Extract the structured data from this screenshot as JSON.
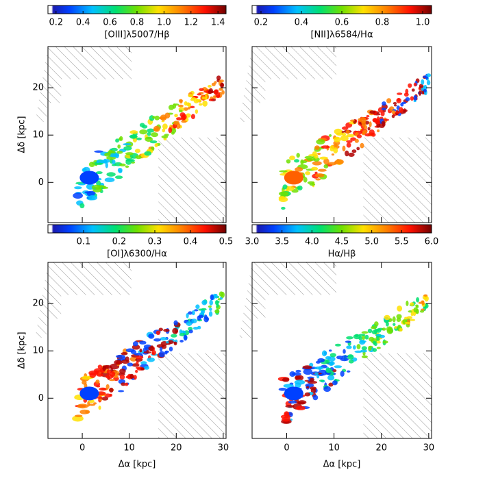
{
  "chart_data": [
    {
      "type": "map",
      "colorbar_label": "[OIII]λ5007/Hβ",
      "clim": [
        0.14,
        1.46
      ],
      "cticks": [
        0.2,
        0.4,
        0.6,
        0.8,
        {
          "value": 1,
          "label": "1.0"
        },
        1.2,
        1.4
      ],
      "xlim": [
        -7.3,
        30.6
      ],
      "ylim": [
        -8.5,
        28.7
      ],
      "xticks": [
        0,
        10,
        20,
        30
      ],
      "yticks": [
        0,
        10,
        20
      ],
      "ylabel": "Δδ [kpc]"
    },
    {
      "type": "map",
      "colorbar_label": "[NII]λ6584/Hα",
      "clim": [
        0.156,
        1.044
      ],
      "cticks": [
        0.2,
        0.4,
        0.6,
        0.8,
        {
          "value": 1,
          "label": "1.0"
        }
      ],
      "xlim": [
        -7.3,
        30.6
      ],
      "ylim": [
        -8.5,
        28.7
      ],
      "xticks": [
        0,
        10,
        20,
        30
      ],
      "yticks": [
        0,
        10,
        20
      ]
    },
    {
      "type": "map",
      "colorbar_label": "[OI]λ6300/Hα",
      "clim": [
        0,
        0.5
      ],
      "cticks": [
        0.1,
        0.2,
        0.3,
        0.4,
        0.5
      ],
      "xlim": [
        -7.3,
        30.6
      ],
      "ylim": [
        -8.5,
        28.7
      ],
      "xticks": [
        0,
        10,
        20,
        30
      ],
      "yticks": [
        0,
        10,
        20
      ],
      "xlabel": "Δα [kpc]",
      "ylabel": "Δδ [kpc]"
    },
    {
      "type": "map",
      "colorbar_label": "Hα/Hβ",
      "clim": [
        3,
        6
      ],
      "cticks": [
        {
          "value": 3,
          "label": "3.0"
        },
        3.5,
        {
          "value": 4,
          "label": "4.0"
        },
        4.5,
        {
          "value": 5,
          "label": "5.0"
        },
        5.5,
        {
          "value": 6,
          "label": "6.0"
        }
      ],
      "xlim": [
        -7.3,
        30.6
      ],
      "ylim": [
        -8.5,
        28.7
      ],
      "xticks": [
        0,
        10,
        20,
        30
      ],
      "yticks": [
        0,
        10,
        20
      ],
      "xlabel": "Δα [kpc]"
    }
  ]
}
